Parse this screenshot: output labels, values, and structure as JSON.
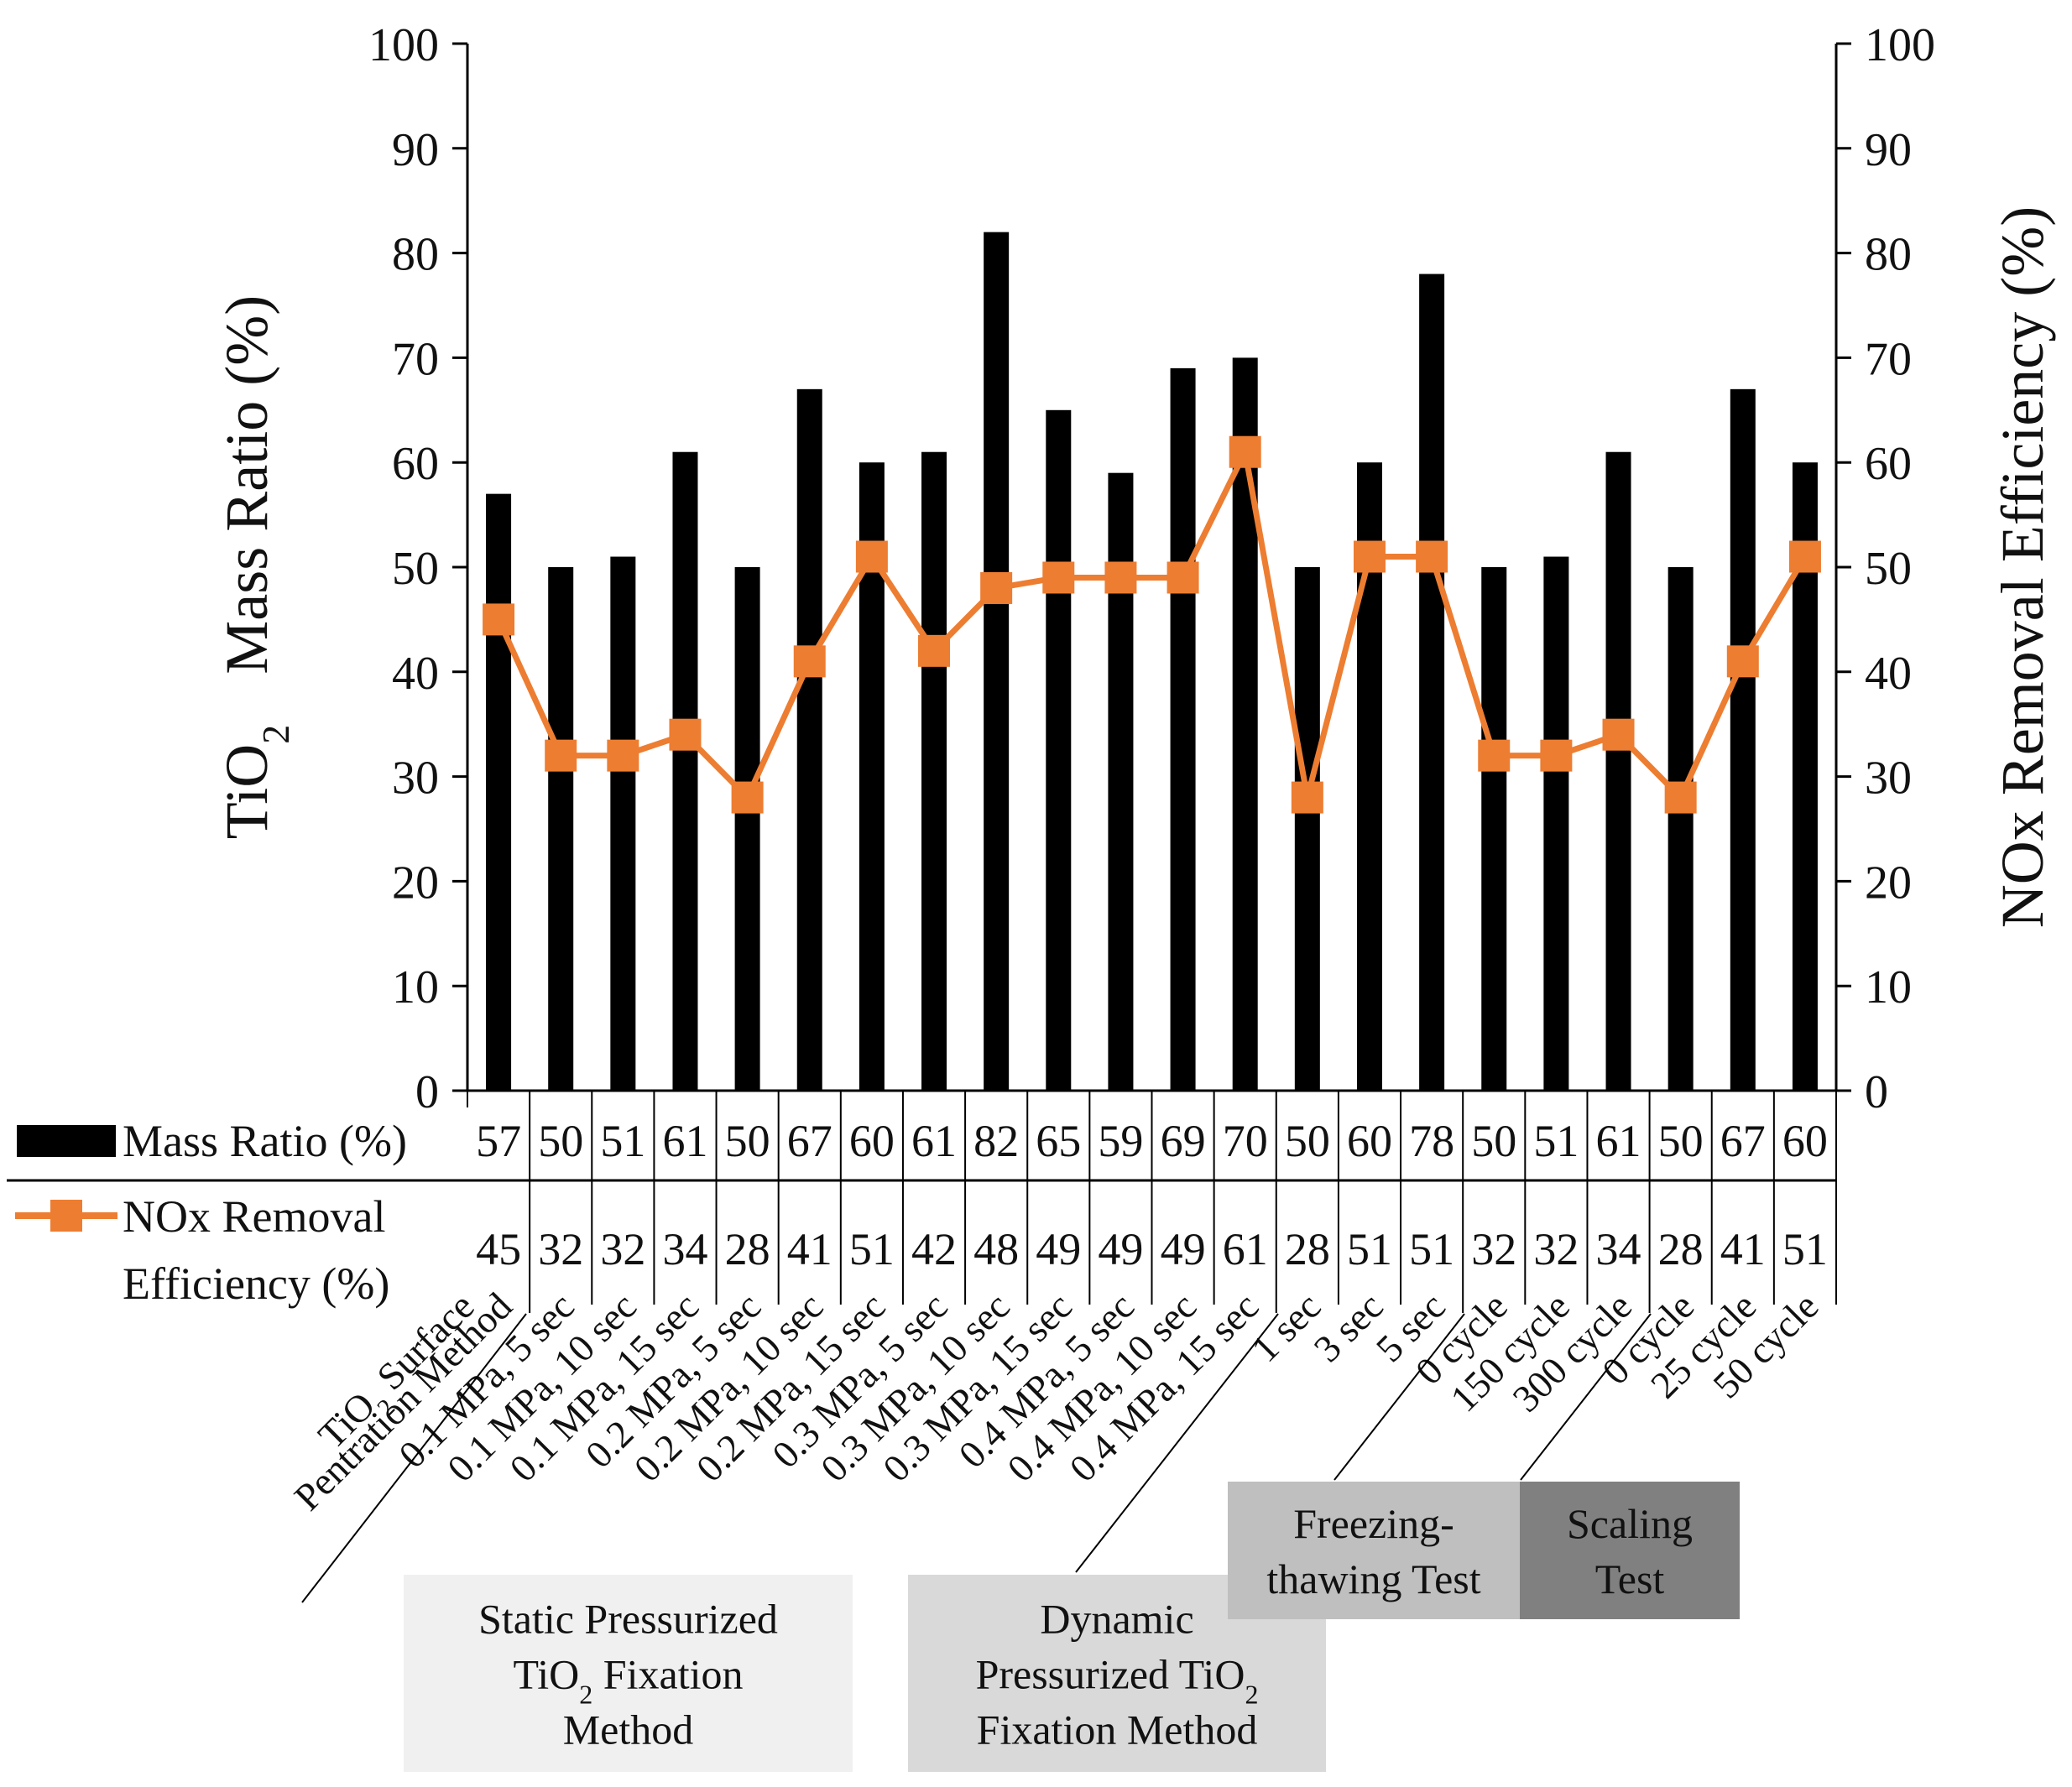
{
  "chart_data": {
    "type": "bar+line",
    "left_axis": {
      "title_main": "Mass Ratio (%)",
      "title_prefix": "TiO",
      "title_sub": "2",
      "ylim": [
        0,
        100
      ],
      "ticks": [
        "0",
        "10",
        "20",
        "30",
        "40",
        "50",
        "60",
        "70",
        "80",
        "90",
        "100"
      ]
    },
    "right_axis": {
      "title": "NOx Removal Efficiency  (%)",
      "ylim": [
        0,
        100
      ],
      "ticks": [
        "0",
        "10",
        "20",
        "30",
        "40",
        "50",
        "60",
        "70",
        "80",
        "90",
        "100"
      ]
    },
    "grid": false,
    "legend_placement": "data-table rows below plot",
    "categories": [
      "TiO2 Surface Pentration Method",
      "0.1 MPa, 5 sec",
      "0.1 MPa, 10 sec",
      "0.1 MPa, 15 sec",
      "0.2 MPa, 5 sec",
      "0.2 MPa, 10 sec",
      "0.2 MPa, 15 sec",
      "0.3 MPa, 5 sec",
      "0.3 MPa, 10 sec",
      "0.3 MPa, 15 sec",
      "0.4 MPa, 5 sec",
      "0.4 MPa, 10 sec",
      "0.4 MPa, 15 sec",
      "1 sec",
      "3 sec",
      "5 sec",
      "0 cycle",
      "150 cycle",
      "300 cycle",
      "0 cycle",
      "25 cycle",
      "50 cycle"
    ],
    "category_label_lines": [
      [
        "TiO|2| Surface",
        "Pentration Method"
      ],
      [
        "0.1 MPa, 5 sec"
      ],
      [
        "0.1 MPa, 10 sec"
      ],
      [
        "0.1 MPa, 15 sec"
      ],
      [
        "0.2 MPa, 5 sec"
      ],
      [
        "0.2 MPa, 10 sec"
      ],
      [
        "0.2 MPa, 15 sec"
      ],
      [
        "0.3 MPa, 5 sec"
      ],
      [
        "0.3 MPa, 10 sec"
      ],
      [
        "0.3 MPa, 15 sec"
      ],
      [
        "0.4 MPa, 5 sec"
      ],
      [
        "0.4 MPa, 10 sec"
      ],
      [
        "0.4 MPa, 15 sec"
      ],
      [
        "1 sec"
      ],
      [
        "3 sec"
      ],
      [
        "5 sec"
      ],
      [
        "0 cycle"
      ],
      [
        "150 cycle"
      ],
      [
        "300 cycle"
      ],
      [
        "0 cycle"
      ],
      [
        "25 cycle"
      ],
      [
        "50 cycle"
      ]
    ],
    "series": [
      {
        "name": "Mass Ratio (%)",
        "type": "bar",
        "axis": "left",
        "color": "#000000",
        "values": [
          57,
          50,
          51,
          61,
          50,
          67,
          60,
          61,
          82,
          65,
          59,
          69,
          70,
          50,
          60,
          78,
          50,
          51,
          61,
          50,
          67,
          60
        ]
      },
      {
        "name": "NOx Removal Efficiency (%)",
        "legend_lines": [
          "NOx Removal",
          "Efficiency (%)"
        ],
        "type": "line",
        "marker": "square",
        "axis": "right",
        "color": "#ED7D31",
        "values": [
          45,
          32,
          32,
          34,
          28,
          41,
          51,
          42,
          48,
          49,
          49,
          49,
          61,
          28,
          51,
          51,
          32,
          32,
          34,
          28,
          41,
          51
        ]
      }
    ],
    "group_boxes": [
      {
        "lines": [
          "Static Pressurized",
          "TiO|2| Fixation",
          "Method"
        ],
        "fill": "#f0f0f0"
      },
      {
        "lines": [
          "Dynamic",
          "Pressurized TiO|2|",
          "Fixation Method"
        ],
        "fill": "#d9d9d9"
      },
      {
        "lines": [
          "Freezing-",
          "thawing Test"
        ],
        "fill": "#bfbfbf"
      },
      {
        "lines": [
          "Scaling",
          "Test"
        ],
        "fill": "#808080"
      }
    ]
  }
}
